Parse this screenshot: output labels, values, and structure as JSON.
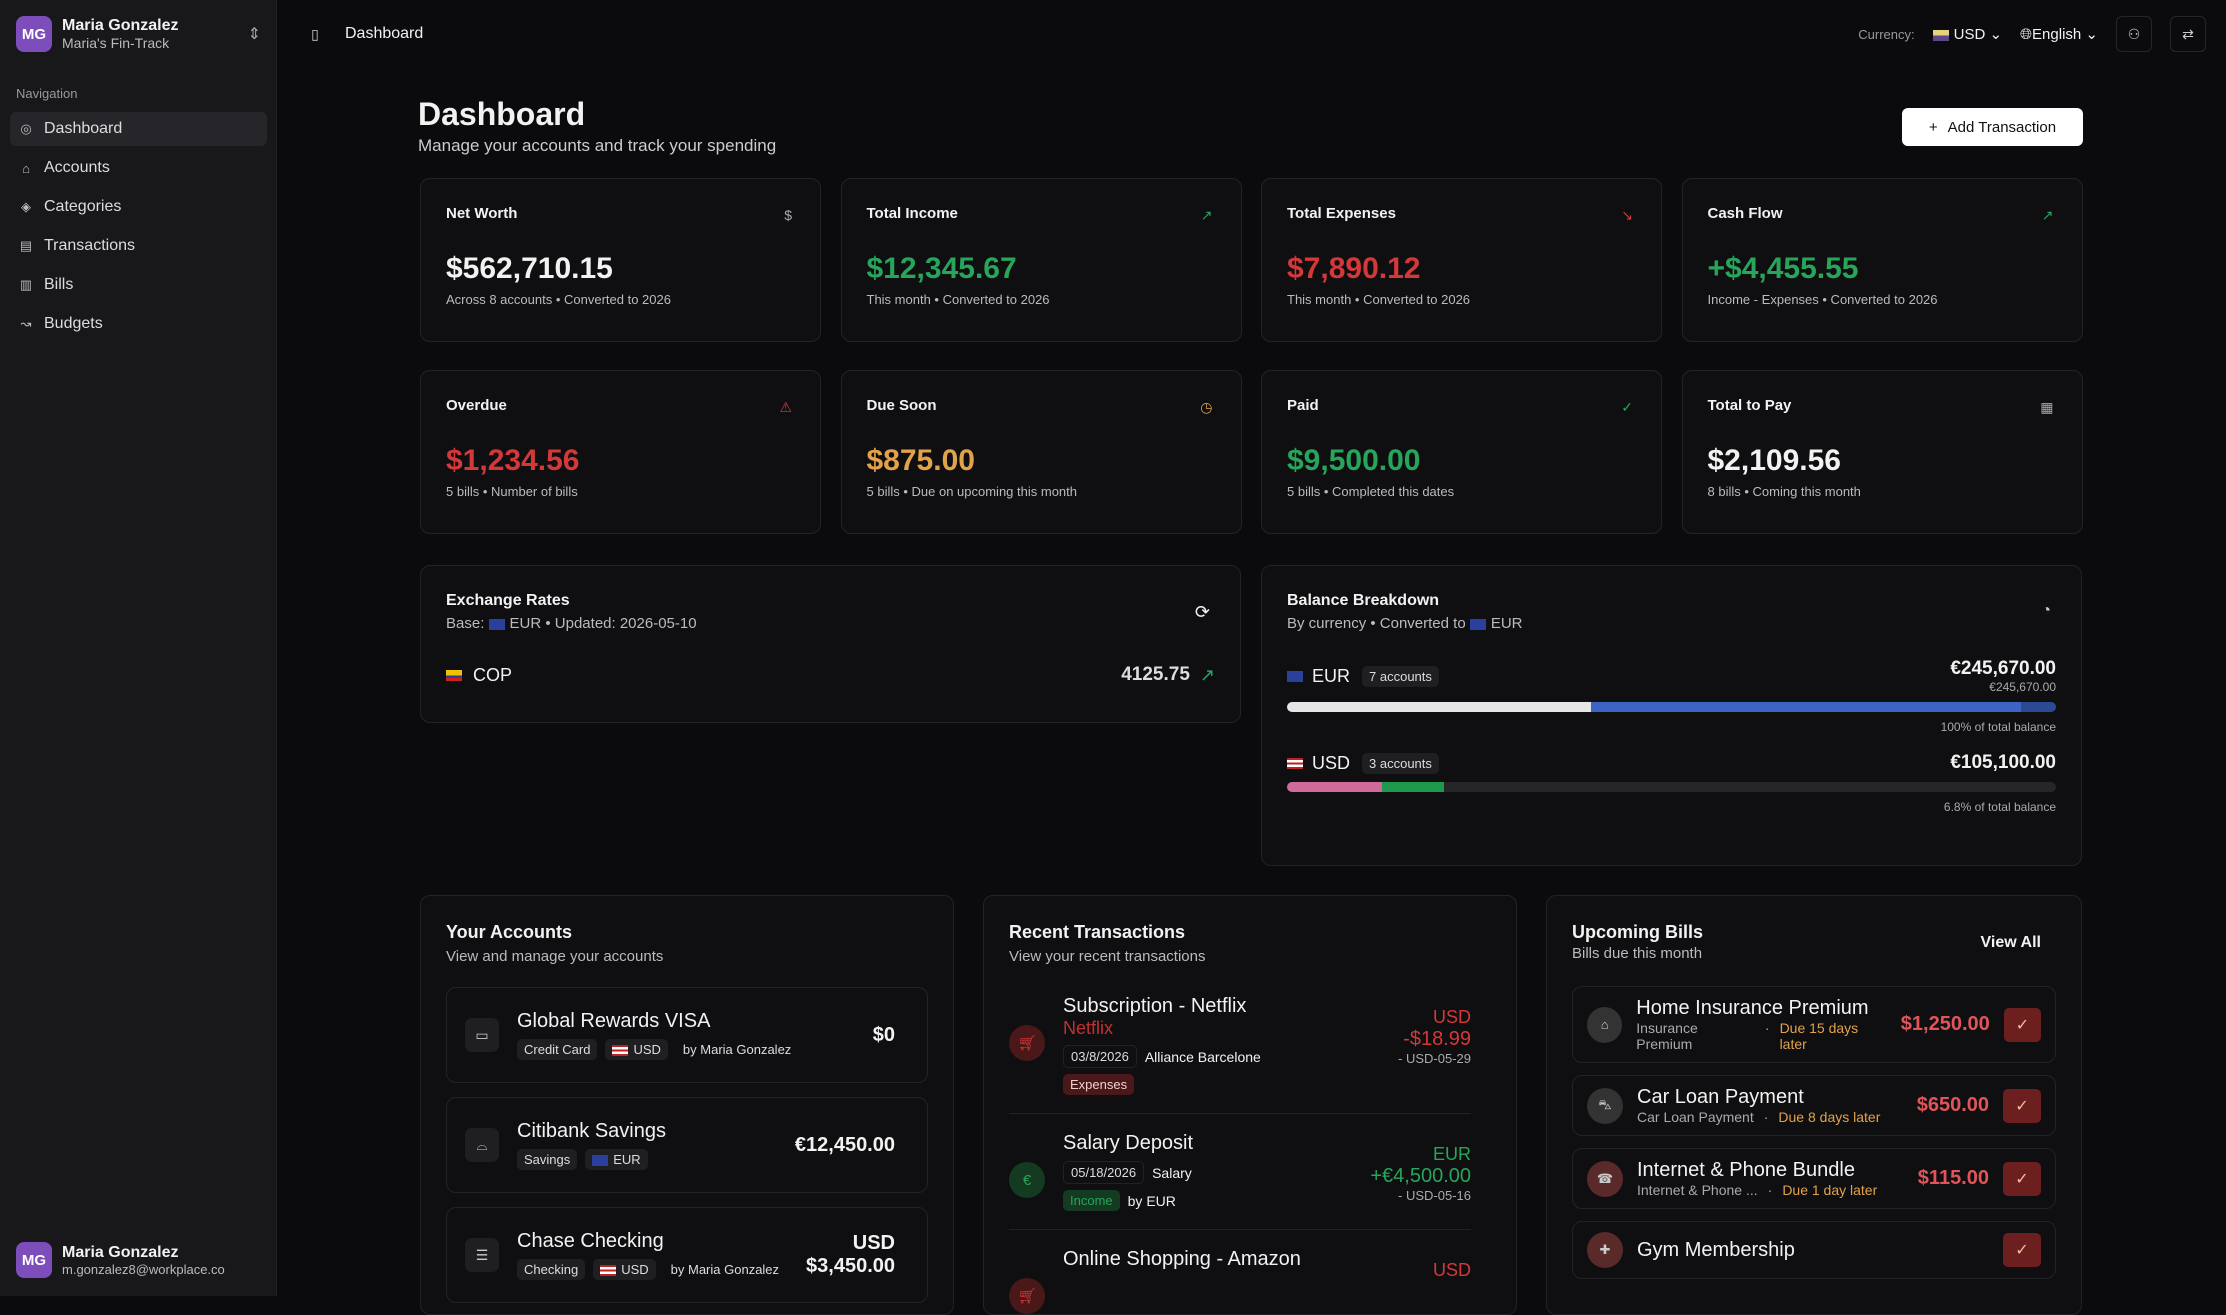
{
  "sidebar": {
    "user": {
      "initials": "MG",
      "name": "Maria Gonzalez",
      "workspace": "Maria's Fin-Track"
    },
    "nav_label": "Navigation",
    "items": [
      {
        "label": "Dashboard",
        "icon": "gauge-icon"
      },
      {
        "label": "Accounts",
        "icon": "bank-icon"
      },
      {
        "label": "Categories",
        "icon": "tag-icon"
      },
      {
        "label": "Transactions",
        "icon": "receipt-icon"
      },
      {
        "label": "Bills",
        "icon": "bill-icon"
      },
      {
        "label": "Budgets",
        "icon": "trend-icon"
      }
    ],
    "footer": {
      "initials": "MG",
      "name": "Maria Gonzalez",
      "email": "m.gonzalez8@workplace.co"
    }
  },
  "topbar": {
    "breadcrumb": "Dashboard",
    "currency_label": "Currency:",
    "currency": "USD",
    "language": "English"
  },
  "page": {
    "title": "Dashboard",
    "subtitle": "Manage your accounts and track your spending",
    "add_button": "Add Transaction"
  },
  "stats": [
    {
      "label": "Net Worth",
      "value": "$562,710.15",
      "sub": "Across 8 accounts • Converted to 2026",
      "icon": "$",
      "color": "#f2f2f2"
    },
    {
      "label": "Total Income",
      "value": "$12,345.67",
      "sub": "This month • Converted to 2026",
      "icon": "↗",
      "color": "#27a55a"
    },
    {
      "label": "Total Expenses",
      "value": "$7,890.12",
      "sub": "This month • Converted to 2026",
      "icon": "↘",
      "color": "#d43838"
    },
    {
      "label": "Cash Flow",
      "value": "+$4,455.55",
      "sub": "Income - Expenses • Converted to 2026",
      "icon": "↗",
      "color": "#27a55a"
    },
    {
      "label": "Overdue",
      "value": "$1,234.56",
      "sub": "5 bills • Number of bills",
      "icon": "⚠",
      "color": "#d43838"
    },
    {
      "label": "Due Soon",
      "value": "$875.00",
      "sub": "5 bills • Due on upcoming this month",
      "icon": "◷",
      "color": "#e2a24a"
    },
    {
      "label": "Paid",
      "value": "$9,500.00",
      "sub": "5 bills • Completed this dates",
      "icon": "✓",
      "color": "#27a55a"
    },
    {
      "label": "Total to Pay",
      "value": "$2,109.56",
      "sub": "8 bills • Coming this month",
      "icon": "▦",
      "color": "#f2f2f2"
    }
  ],
  "exchange": {
    "title": "Exchange Rates",
    "base_label": "Base:",
    "base": "EUR",
    "updated": "• Updated: 2026-05-10",
    "rates": [
      {
        "code": "COP",
        "value": "4125.75"
      }
    ]
  },
  "balance": {
    "title": "Balance Breakdown",
    "sub": "By currency • Converted to",
    "sub_cur": "EUR",
    "rows": [
      {
        "code": "EUR",
        "accounts": "7 accounts",
        "amount": "€245,670.00",
        "converted": "€245,670.00",
        "pct": "100% of total balance",
        "segments": [
          {
            "share": 0.395,
            "color": "#e6e6e6"
          },
          {
            "share": 0.56,
            "color": "#3b64c4"
          },
          {
            "share": 0.045,
            "color": "#2c4a94"
          }
        ]
      },
      {
        "code": "USD",
        "accounts": "3 accounts",
        "amount": "€105,100.00",
        "converted": "",
        "pct": "6.8% of total balance",
        "segments": [
          {
            "share": 0.124,
            "color": "#d06a9a"
          },
          {
            "share": 0.08,
            "color": "#1f9a4c"
          }
        ]
      }
    ]
  },
  "accounts": {
    "title": "Your Accounts",
    "sub": "View and manage your accounts",
    "items": [
      {
        "name": "Global Rewards VISA",
        "type": "Credit Card",
        "currency": "USD",
        "owner": "by Maria Gonzalez",
        "amount": "$0",
        "amount_cur": "",
        "icon": "credit-card-icon"
      },
      {
        "name": "Citibank Savings",
        "type": "Savings",
        "currency": "EUR",
        "owner": "",
        "amount": "€12,450.00",
        "amount_cur": "",
        "icon": "piggy-bank-icon"
      },
      {
        "name": "Chase Checking",
        "type": "Checking",
        "currency": "USD",
        "owner": "by Maria Gonzalez",
        "amount": "$3,450.00",
        "amount_cur": "USD",
        "icon": "wallet-icon"
      }
    ]
  },
  "transactions": {
    "title": "Recent Transactions",
    "sub": "View your recent transactions",
    "items": [
      {
        "title": "Subscription - Netflix",
        "merchant": "Netflix",
        "date": "03/8/2026",
        "desc": "Alliance Barcelone",
        "category": "Expenses",
        "by": "",
        "currency": "USD",
        "amount": "-$18.99",
        "note": "- USD-05-29",
        "kind": "expense"
      },
      {
        "title": "Salary Deposit",
        "merchant": "",
        "date": "05/18/2026",
        "desc": "Salary",
        "category": "Income",
        "by": "by EUR",
        "currency": "EUR",
        "amount": "+€4,500.00",
        "note": "- USD-05-16",
        "kind": "income"
      },
      {
        "title": "Online Shopping - Amazon",
        "merchant": "",
        "date": "",
        "desc": "",
        "category": "",
        "by": "",
        "currency": "USD",
        "amount": "",
        "note": "",
        "kind": "expense"
      }
    ]
  },
  "bills": {
    "title": "Upcoming Bills",
    "sub": "Bills due this month",
    "view_all": "View All",
    "items": [
      {
        "name": "Home Insurance Premium",
        "category": "Insurance Premium",
        "due": "Due 15 days later",
        "amount": "$1,250.00"
      },
      {
        "name": "Car Loan Payment",
        "category": "Car Loan Payment",
        "due": "Due 8 days later",
        "amount": "$650.00"
      },
      {
        "name": "Internet & Phone Bundle",
        "category": "Internet & Phone ...",
        "due": "Due 1 day later",
        "amount": "$115.00"
      },
      {
        "name": "Gym Membership",
        "category": "",
        "due": "",
        "amount": ""
      }
    ]
  }
}
